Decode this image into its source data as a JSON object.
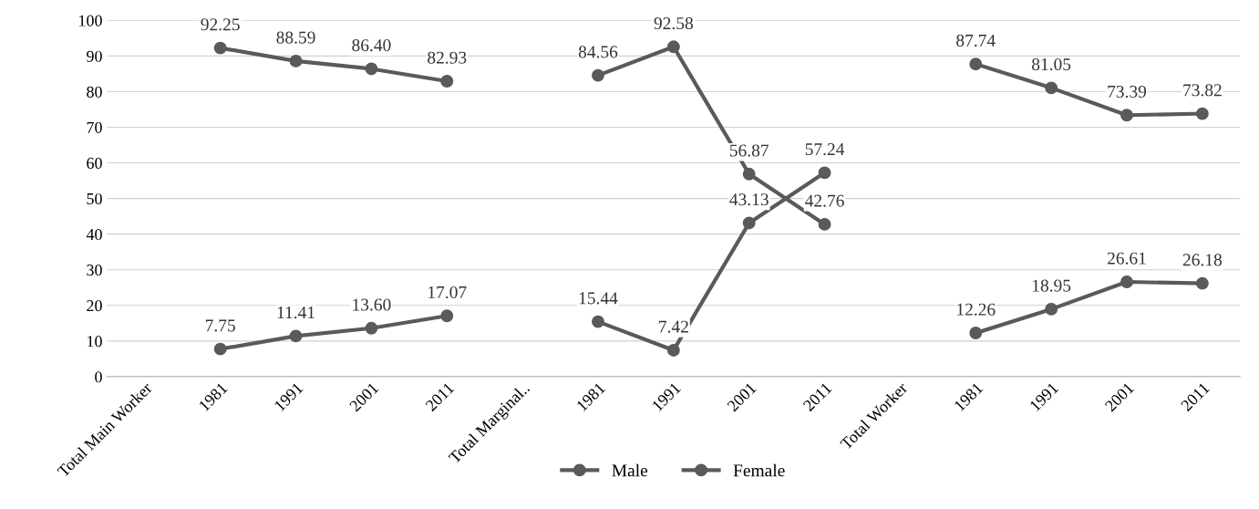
{
  "chart_data": {
    "type": "line",
    "categories": [
      "Total Main Worker",
      "1981",
      "1991",
      "2001",
      "2011",
      "Total Marginal..",
      "1981",
      "1991",
      "2001",
      "2011",
      "Total Worker",
      "1981",
      "1991",
      "2001",
      "2011"
    ],
    "series": [
      {
        "name": "Male",
        "color": "#5a5a5a",
        "values": [
          null,
          92.25,
          88.59,
          86.4,
          82.93,
          null,
          84.56,
          92.58,
          56.87,
          42.76,
          null,
          87.74,
          81.05,
          73.39,
          73.82
        ],
        "value_labels": [
          null,
          "92.25",
          "88.59",
          "86.40",
          "82.93",
          null,
          "84.56",
          "92.58",
          "56.87",
          "42.76",
          null,
          "87.74",
          "81.05",
          "73.39",
          "73.82"
        ]
      },
      {
        "name": "Female",
        "color": "#5a5a5a",
        "values": [
          null,
          7.75,
          11.41,
          13.6,
          17.07,
          null,
          15.44,
          7.42,
          43.13,
          57.24,
          null,
          12.26,
          18.95,
          26.61,
          26.18
        ],
        "value_labels": [
          null,
          "7.75",
          "11.41",
          "13.60",
          "17.07",
          null,
          "15.44",
          "7.42",
          "43.13",
          "57.24",
          null,
          "12.26",
          "18.95",
          "26.61",
          "26.18"
        ]
      }
    ],
    "ylim": [
      0,
      100
    ],
    "yticks": [
      0,
      10,
      20,
      30,
      40,
      50,
      60,
      70,
      80,
      90,
      100
    ],
    "grid": "y",
    "legend": "bottom",
    "marker": "circle",
    "line_style": "solid"
  }
}
